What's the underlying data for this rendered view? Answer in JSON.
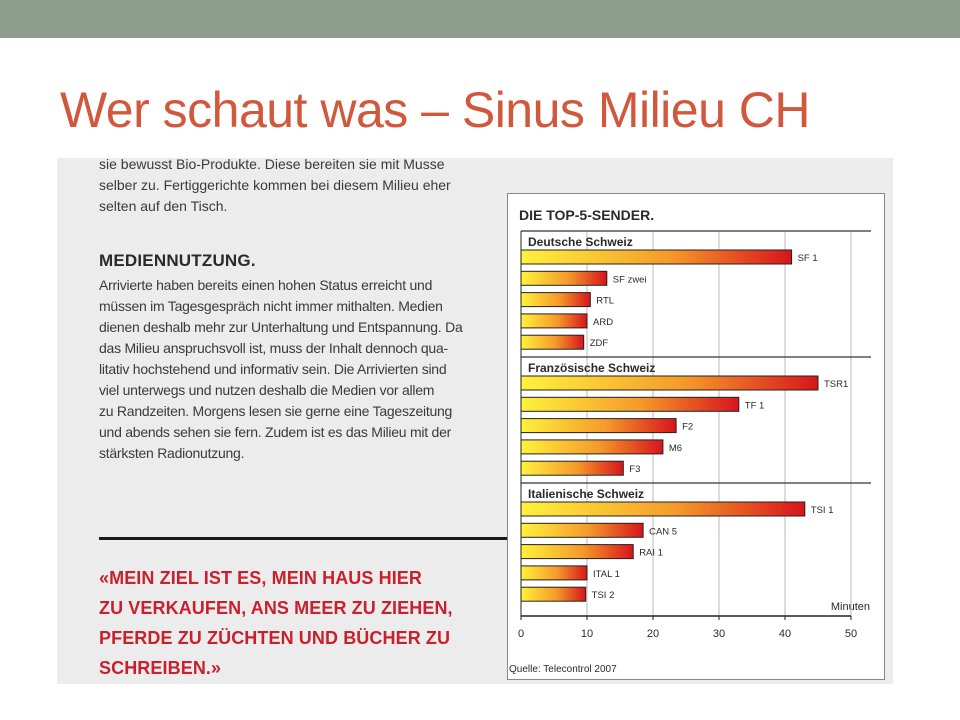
{
  "slide": {
    "title": "Wer schaut was – Sinus Milieu CH"
  },
  "article": {
    "intro": "sie bewusst Bio-Produkte. Diese bereiten sie mit Musse\nselber zu. Fertiggerichte kommen bei diesem Milieu eher\nselten auf den Tisch.",
    "heading": "MEDIENNUTZUNG.",
    "body": "Arrivierte haben bereits einen hohen Status erreicht und\nmüssen im Tagesgespräch nicht immer mithalten. Medien\ndienen deshalb mehr zur Unterhaltung und Entspannung. Da\ndas Milieu anspruchsvoll ist, muss der Inhalt dennoch qua-\nlitativ hochstehend und informativ sein. Die Arrivierten sind\nviel unterwegs und nutzen deshalb die Medien vor allem\nzu Randzeiten. Morgens lesen sie gerne eine Tageszeitung\nund abends sehen sie fern. Zudem ist es das Milieu mit der\nstärksten Radionutzung.",
    "quote": "«MEIN ZIEL IST ES, MEIN HAUS HIER\nZU VERKAUFEN, ANS MEER ZU ZIEHEN,\nPFERDE ZU ZÜCHTEN UND BÜCHER ZU\nSCHREIBEN.»"
  },
  "chart_data": {
    "type": "bar",
    "orientation": "horizontal",
    "title": "DIE TOP-5-SENDER.",
    "xlabel": "Minuten",
    "xlim": [
      0,
      50
    ],
    "xticks": [
      0,
      10,
      20,
      30,
      40,
      50
    ],
    "source": "Quelle: Telecontrol 2007",
    "groups": [
      {
        "name": "Deutsche Schweiz",
        "categories": [
          "SF 1",
          "SF zwei",
          "RTL",
          "ARD",
          "ZDF"
        ],
        "values": [
          41,
          13,
          10.5,
          10,
          9.5
        ]
      },
      {
        "name": "Französische Schweiz",
        "categories": [
          "TSR1",
          "TF 1",
          "F2",
          "M6",
          "F3"
        ],
        "values": [
          45,
          33,
          23.5,
          21.5,
          15.5
        ]
      },
      {
        "name": "Italienische Schweiz",
        "categories": [
          "TSI 1",
          "CAN 5",
          "RAI 1",
          "ITAL 1",
          "TSI 2"
        ],
        "values": [
          43,
          18.5,
          17,
          10,
          9.8
        ]
      }
    ],
    "grid": "vertical",
    "colors": {
      "gradient_start": "#fff23c",
      "gradient_mid": "#f59a2a",
      "gradient_end": "#d8141c"
    }
  }
}
